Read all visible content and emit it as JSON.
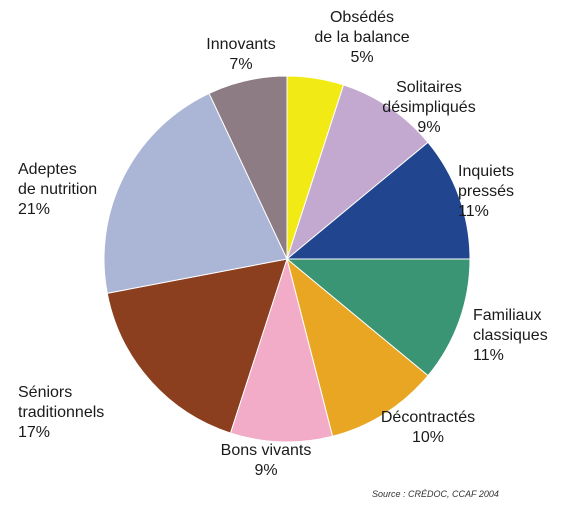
{
  "chart_data": {
    "type": "pie",
    "slices": [
      {
        "name": "Obsédés de la balance",
        "line1": "Obsédés",
        "line2": "de la balance",
        "value": 5,
        "pct": "5%",
        "color": "#f2ea14"
      },
      {
        "name": "Solitaires désimpliqués",
        "line1": "Solitaires",
        "line2": "désimpliqués",
        "value": 9,
        "pct": "9%",
        "color": "#c3a8cf"
      },
      {
        "name": "Inquiets pressés",
        "line1": "Inquiets",
        "line2": "pressés",
        "value": 11,
        "pct": "11%",
        "color": "#21458f"
      },
      {
        "name": "Familiaux classiques",
        "line1": "Familiaux",
        "line2": "classiques",
        "value": 11,
        "pct": "11%",
        "color": "#3a9574"
      },
      {
        "name": "Décontractés",
        "line1": "Décontractés",
        "line2": "",
        "value": 10,
        "pct": "10%",
        "color": "#e8a623"
      },
      {
        "name": "Bons vivants",
        "line1": "Bons vivants",
        "line2": "",
        "value": 9,
        "pct": "9%",
        "color": "#f2acc7"
      },
      {
        "name": "Séniors traditionnels",
        "line1": "Séniors",
        "line2": "traditionnels",
        "value": 17,
        "pct": "17%",
        "color": "#8b3f1e"
      },
      {
        "name": "Adeptes de nutrition",
        "line1": "Adeptes",
        "line2": "de nutrition",
        "value": 21,
        "pct": "21%",
        "color": "#abb6d6"
      },
      {
        "name": "Innovants",
        "line1": "Innovants",
        "line2": "",
        "value": 7,
        "pct": "7%",
        "color": "#8e7c84"
      }
    ],
    "start_direction": "top",
    "direction": "clockwise"
  },
  "source": "Source : CRÉDOC, CCAF 2004"
}
